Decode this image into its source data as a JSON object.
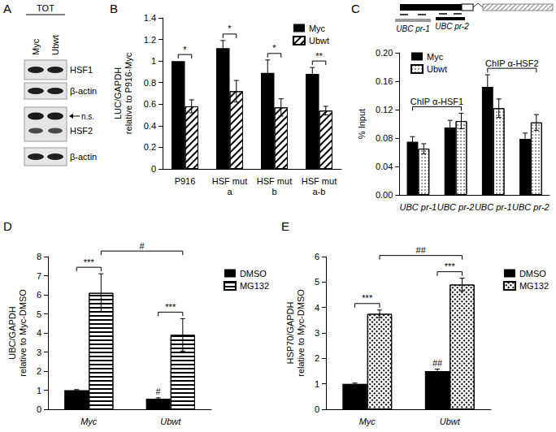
{
  "panel_a": {
    "label": "A",
    "header": "TOT",
    "lanes": [
      "Myc",
      "Ubwt"
    ],
    "blots": [
      "HSF1",
      "β-actin",
      "HSF2",
      "β-actin"
    ],
    "nonspecific_band": "n.s."
  },
  "gene_diagram": {
    "primers": [
      "UBC pr-1",
      "UBC pr-2"
    ]
  },
  "chart_data": [
    {
      "label": "B",
      "type": "bar",
      "y_label": "LUC/GAPDH\nrelative to P916-Myc",
      "categories": [
        "P916",
        "HSF mut\na",
        "HSF mut\nb",
        "HSF mut\na-b"
      ],
      "series": [
        {
          "name": "Myc",
          "color": "#000000",
          "marker": "solid",
          "values": [
            1.0,
            1.12,
            0.89,
            0.88
          ],
          "errors": [
            0,
            0.07,
            0.12,
            0.06
          ]
        },
        {
          "name": "Ubwt",
          "color": "#000000",
          "marker": "hatch",
          "values": [
            0.58,
            0.72,
            0.57,
            0.54
          ],
          "errors": [
            0.06,
            0.1,
            0.08,
            0.04
          ]
        }
      ],
      "ylim": [
        0,
        1.4
      ],
      "yticks": [
        0,
        0.2,
        0.4,
        0.6,
        0.8,
        1,
        1.2,
        1.4
      ],
      "grid": false,
      "legend": "top-right",
      "annotations": [
        {
          "text": "*",
          "bars": [
            [
              0,
              0
            ],
            [
              0,
              1
            ]
          ]
        },
        {
          "text": "*",
          "bars": [
            [
              1,
              0
            ],
            [
              1,
              1
            ]
          ]
        },
        {
          "text": "*",
          "bars": [
            [
              2,
              0
            ],
            [
              2,
              1
            ]
          ]
        },
        {
          "text": "**",
          "bars": [
            [
              3,
              0
            ],
            [
              3,
              1
            ]
          ]
        }
      ]
    },
    {
      "label": "C",
      "type": "bar",
      "y_label": "% Input",
      "categories": [
        "UBC pr-1",
        "UBC pr-2",
        "UBC pr-1",
        "UBC pr-2"
      ],
      "series": [
        {
          "name": "Myc",
          "color": "#000000",
          "marker": "solid",
          "values": [
            0.075,
            0.095,
            0.152,
            0.079
          ],
          "errors": [
            0.007,
            0.01,
            0.017,
            0.008
          ]
        },
        {
          "name": "Ubwt",
          "color": "#000000",
          "marker": "dots",
          "values": [
            0.065,
            0.104,
            0.122,
            0.102
          ],
          "errors": [
            0.007,
            0.011,
            0.013,
            0.011
          ]
        }
      ],
      "ylim": [
        0,
        0.2
      ],
      "yticks": [
        {
          "value": 0,
          "label": "0.00"
        },
        {
          "value": 0.04,
          "label": "0.04"
        },
        {
          "value": 0.08,
          "label": "0.08"
        },
        {
          "value": 0.12,
          "label": "0.12"
        },
        {
          "value": 0.16,
          "label": "0.16"
        },
        {
          "value": 0.2,
          "label": "0.20"
        }
      ],
      "grid": false,
      "legend": "top-left",
      "annotations": [
        {
          "text": "ChIP α-HSF1",
          "bars": [
            [
              0,
              0
            ],
            [
              1,
              1
            ]
          ]
        },
        {
          "text": "ChIP α-HSF2",
          "bars": [
            [
              2,
              0
            ],
            [
              3,
              1
            ]
          ]
        }
      ]
    },
    {
      "label": "D",
      "type": "bar",
      "y_label": "UBC/GAPDH\nrelative to Myc-DMSO",
      "categories": [
        "Myc",
        "Ubwt"
      ],
      "series": [
        {
          "name": "DMSO",
          "color": "#000000",
          "marker": "solid",
          "values": [
            1.0,
            0.55
          ],
          "errors": [
            0.03,
            0.05
          ]
        },
        {
          "name": "MG132",
          "color": "#000000",
          "marker": "stripes",
          "values": [
            6.1,
            3.9
          ],
          "errors": [
            1.0,
            0.85
          ]
        }
      ],
      "ylim": [
        0,
        8
      ],
      "yticks": [
        0,
        1,
        2,
        3,
        4,
        5,
        6,
        7,
        8
      ],
      "grid": false,
      "legend": "right",
      "annotations": [
        {
          "text": "***",
          "bars": [
            [
              0,
              0
            ],
            [
              0,
              1
            ]
          ]
        },
        {
          "text": "***",
          "bars": [
            [
              1,
              0
            ],
            [
              1,
              1
            ]
          ]
        },
        {
          "text": "#",
          "bars": [
            [
              0,
              1
            ],
            [
              1,
              1
            ]
          ]
        },
        {
          "text": "#",
          "bars": [
            [
              1,
              0
            ]
          ]
        }
      ]
    },
    {
      "label": "E",
      "type": "bar",
      "y_label": "HSP70/GAPDH\nrelative to Myc-DMSO",
      "categories": [
        "Myc",
        "Ubwt"
      ],
      "series": [
        {
          "name": "DMSO",
          "color": "#000000",
          "marker": "solid",
          "values": [
            1.0,
            1.5
          ],
          "errors": [
            0.03,
            0.08
          ]
        },
        {
          "name": "MG132",
          "color": "#000000",
          "marker": "crosshatch",
          "values": [
            3.75,
            4.9
          ],
          "errors": [
            0.15,
            0.25
          ]
        }
      ],
      "ylim": [
        0,
        6
      ],
      "yticks": [
        0,
        1,
        2,
        3,
        4,
        5,
        6
      ],
      "grid": false,
      "legend": "right",
      "annotations": [
        {
          "text": "***",
          "bars": [
            [
              0,
              0
            ],
            [
              0,
              1
            ]
          ]
        },
        {
          "text": "***",
          "bars": [
            [
              1,
              0
            ],
            [
              1,
              1
            ]
          ]
        },
        {
          "text": "##",
          "bars": [
            [
              0,
              1
            ],
            [
              1,
              1
            ]
          ]
        },
        {
          "text": "##",
          "bars": [
            [
              1,
              0
            ]
          ]
        }
      ]
    }
  ]
}
